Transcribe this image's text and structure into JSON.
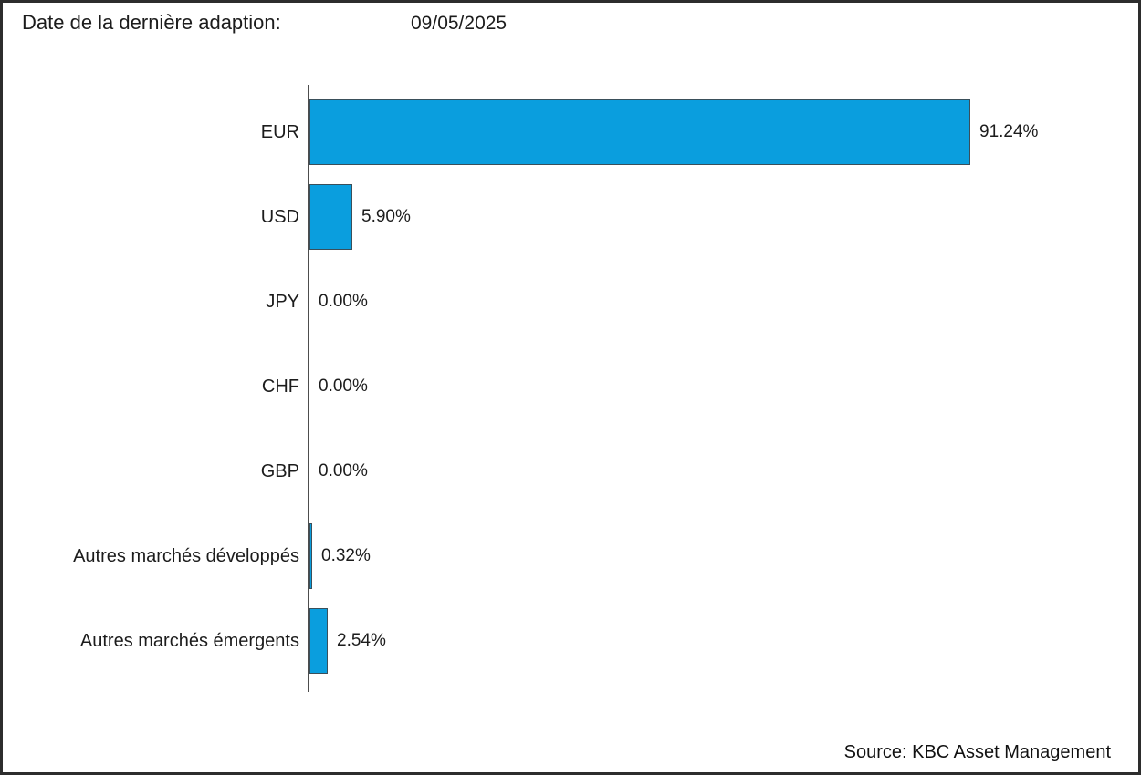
{
  "header": {
    "title": "Date de la dernière adaption:",
    "date": "09/05/2025"
  },
  "chart_data": {
    "type": "bar",
    "orientation": "horizontal",
    "title": "",
    "xlabel": "",
    "ylabel": "",
    "categories": [
      "EUR",
      "USD",
      "JPY",
      "CHF",
      "GBP",
      "Autres marchés développés",
      "Autres marchés émergents"
    ],
    "values": [
      91.24,
      5.9,
      0.0,
      0.0,
      0.0,
      0.32,
      2.54
    ],
    "value_labels": [
      "91.24%",
      "5.90%",
      "0.00%",
      "0.00%",
      "0.00%",
      "0.32%",
      "2.54%"
    ],
    "xlim": [
      0,
      100
    ],
    "grid": false,
    "legend": false,
    "bar_color": "#0a9ede",
    "bar_border_color": "#3a4f5a",
    "axis_line_color": "#4d4d4d"
  },
  "footer": {
    "source": "Source: KBC Asset Management"
  }
}
